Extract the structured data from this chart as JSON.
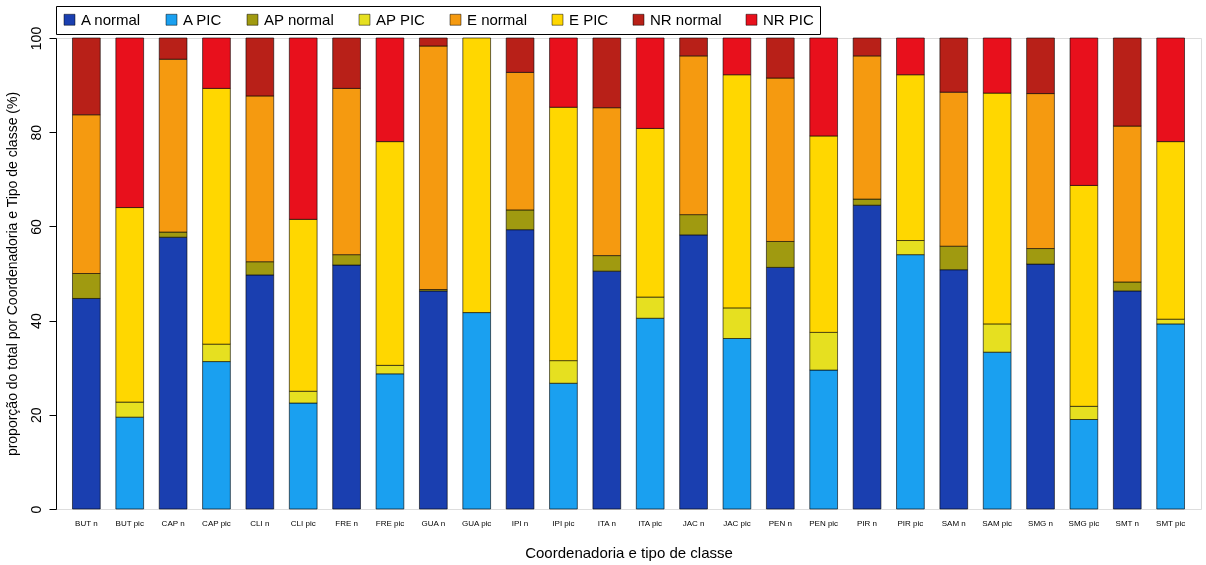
{
  "chart_data": {
    "type": "bar",
    "stacked": true,
    "xlabel": "Coordenadoria e tipo de classe",
    "ylabel": "proporção do total por Coordenadoria e Tipo de classe (%)",
    "categories": [
      "BUT n",
      "BUT pic",
      "CAP n",
      "CAP pic",
      "CLI n",
      "CLI pic",
      "FRE n",
      "FRE pic",
      "GUA n",
      "GUA pic",
      "IPI n",
      "IPI pic",
      "ITA n",
      "ITA pic",
      "JAC n",
      "JAC pic",
      "PEN n",
      "PEN pic",
      "PIR n",
      "PIR pic",
      "SAM n",
      "SAM pic",
      "SMG n",
      "SMG pic",
      "SMT n",
      "SMT pic"
    ],
    "ylim": [
      0,
      100
    ],
    "yticks": [
      0,
      20,
      40,
      60,
      80,
      100
    ],
    "grid": false,
    "legend": "top",
    "series": [
      {
        "name": "A normal",
        "color": "#1a3fb0",
        "values": [
          44.7,
          null,
          57.7,
          null,
          49.7,
          null,
          51.8,
          null,
          46.3,
          null,
          59.3,
          null,
          50.5,
          null,
          58.2,
          null,
          51.3,
          null,
          64.5,
          null,
          50.8,
          null,
          52,
          null,
          46.3,
          null
        ]
      },
      {
        "name": "A PIC",
        "color": "#1aa0f0",
        "values": [
          null,
          19.5,
          null,
          31.3,
          null,
          22.5,
          null,
          28.7,
          null,
          41.7,
          null,
          26.7,
          null,
          40.5,
          null,
          36.2,
          null,
          29.5,
          null,
          54,
          null,
          33.3,
          null,
          19,
          null,
          39.3
        ]
      },
      {
        "name": "AP normal",
        "color": "#a09a10",
        "values": [
          5.3,
          null,
          1.1,
          null,
          2.8,
          null,
          2.2,
          null,
          0.3,
          null,
          4.2,
          null,
          3.3,
          null,
          4.3,
          null,
          5.5,
          null,
          1.3,
          null,
          5,
          null,
          3.3,
          null,
          1.9,
          null
        ]
      },
      {
        "name": "AP PIC",
        "color": "#e6e020",
        "values": [
          null,
          3.2,
          null,
          3.7,
          null,
          2.5,
          null,
          1.8,
          null,
          null,
          null,
          4.8,
          null,
          4.5,
          null,
          6.5,
          null,
          8,
          null,
          3,
          null,
          6,
          null,
          2.8,
          null,
          1
        ]
      },
      {
        "name": "E normal",
        "color": "#f59a10",
        "values": [
          33.7,
          null,
          36.7,
          null,
          35.2,
          null,
          35.3,
          null,
          51.7,
          null,
          29.2,
          null,
          31.4,
          null,
          33.7,
          null,
          34.7,
          null,
          30.4,
          null,
          32.7,
          null,
          32.9,
          null,
          33.1,
          null
        ]
      },
      {
        "name": "E PIC",
        "color": "#ffd700",
        "values": [
          null,
          41.3,
          null,
          54.3,
          null,
          36.5,
          null,
          47.5,
          null,
          58.3,
          null,
          53.8,
          null,
          35.8,
          null,
          49.5,
          null,
          41.7,
          null,
          35.2,
          null,
          49,
          null,
          46.9,
          null,
          37.7
        ]
      },
      {
        "name": "NR normal",
        "color": "#b82018",
        "values": [
          16.3,
          null,
          4.5,
          null,
          12.3,
          null,
          10.7,
          null,
          1.7,
          null,
          7.3,
          null,
          14.8,
          null,
          3.8,
          null,
          8.5,
          null,
          3.8,
          null,
          11.5,
          null,
          11.8,
          null,
          18.7,
          null
        ]
      },
      {
        "name": "NR PIC",
        "color": "#e8101c",
        "values": [
          null,
          36,
          null,
          10.7,
          null,
          38.5,
          null,
          22,
          null,
          null,
          null,
          14.7,
          null,
          19.2,
          null,
          7.8,
          null,
          20.8,
          null,
          7.8,
          null,
          11.7,
          null,
          31.3,
          null,
          22
        ]
      }
    ]
  }
}
